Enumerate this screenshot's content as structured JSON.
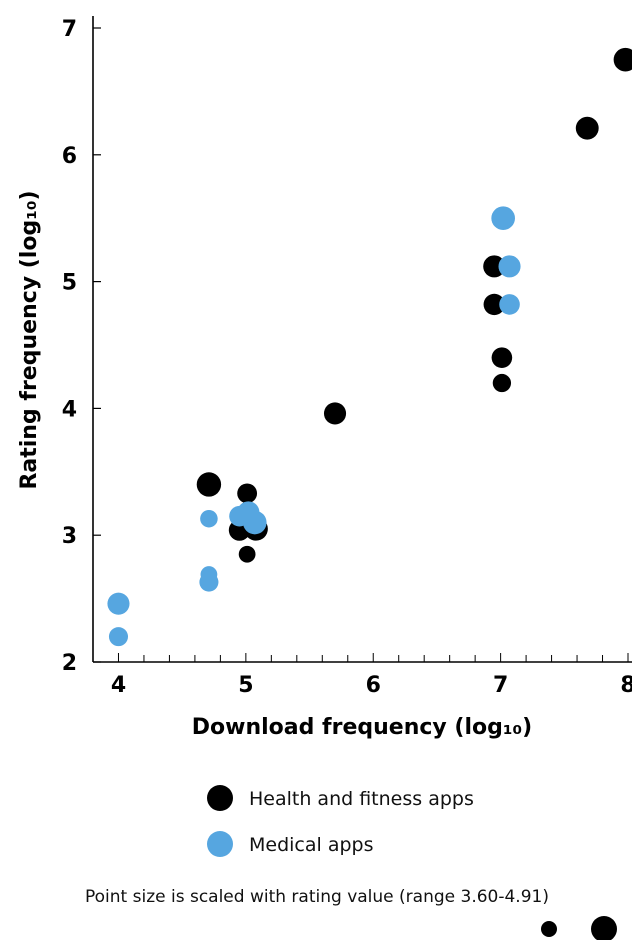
{
  "chart_data": {
    "type": "scatter",
    "xlabel": "Download frequency (log₁₀)",
    "ylabel": "Rating frequency (log₁₀)",
    "xlim": [
      3.8,
      8.0
    ],
    "ylim": [
      2,
      7
    ],
    "x_ticks": [
      4,
      5,
      6,
      7,
      8
    ],
    "y_ticks": [
      2,
      3,
      4,
      5,
      6,
      7
    ],
    "x_tick_labels": [
      "4",
      "5",
      "6",
      "7",
      "8"
    ],
    "y_tick_labels": [
      "2",
      "3",
      "4",
      "5",
      "6",
      "7"
    ],
    "x_minor_step": 0.2,
    "grid": false,
    "series": [
      {
        "name": "Health and fitness apps",
        "color": "#000000",
        "points": [
          {
            "x": 4.71,
            "y": 3.4,
            "rating": 4.7
          },
          {
            "x": 4.95,
            "y": 3.04,
            "rating": 4.3
          },
          {
            "x": 5.01,
            "y": 3.33,
            "rating": 4.1
          },
          {
            "x": 5.01,
            "y": 2.85,
            "rating": 3.7
          },
          {
            "x": 5.08,
            "y": 3.05,
            "rating": 4.6
          },
          {
            "x": 5.7,
            "y": 3.96,
            "rating": 4.4
          },
          {
            "x": 6.95,
            "y": 5.12,
            "rating": 4.4
          },
          {
            "x": 6.95,
            "y": 4.82,
            "rating": 4.3
          },
          {
            "x": 7.01,
            "y": 4.4,
            "rating": 4.2
          },
          {
            "x": 7.01,
            "y": 4.2,
            "rating": 3.9
          },
          {
            "x": 7.68,
            "y": 6.21,
            "rating": 4.5
          },
          {
            "x": 7.98,
            "y": 6.75,
            "rating": 4.6
          }
        ]
      },
      {
        "name": "Medical apps",
        "color": "#56a6e0",
        "points": [
          {
            "x": 4.0,
            "y": 2.46,
            "rating": 4.4
          },
          {
            "x": 4.0,
            "y": 2.2,
            "rating": 4.0
          },
          {
            "x": 4.71,
            "y": 3.13,
            "rating": 3.8
          },
          {
            "x": 4.71,
            "y": 2.69,
            "rating": 3.7
          },
          {
            "x": 4.71,
            "y": 2.63,
            "rating": 4.0
          },
          {
            "x": 4.95,
            "y": 3.15,
            "rating": 4.2
          },
          {
            "x": 5.02,
            "y": 3.18,
            "rating": 4.4
          },
          {
            "x": 5.07,
            "y": 3.1,
            "rating": 4.6
          },
          {
            "x": 7.02,
            "y": 5.5,
            "rating": 4.6
          },
          {
            "x": 7.07,
            "y": 5.12,
            "rating": 4.4
          },
          {
            "x": 7.07,
            "y": 4.82,
            "rating": 4.2
          }
        ]
      }
    ],
    "legend": {
      "placement": "bottom",
      "items": [
        {
          "label": "Health and fitness apps",
          "color": "#000000"
        },
        {
          "label": "Medical apps",
          "color": "#56a6e0"
        }
      ]
    },
    "size_note": "Point size is scaled with rating value (range 3.60-4.91)",
    "size_scale": {
      "min_rating": 3.6,
      "max_rating": 4.91
    },
    "size_examples": [
      {
        "rating": 3.6
      },
      {
        "rating": 4.91
      }
    ]
  }
}
